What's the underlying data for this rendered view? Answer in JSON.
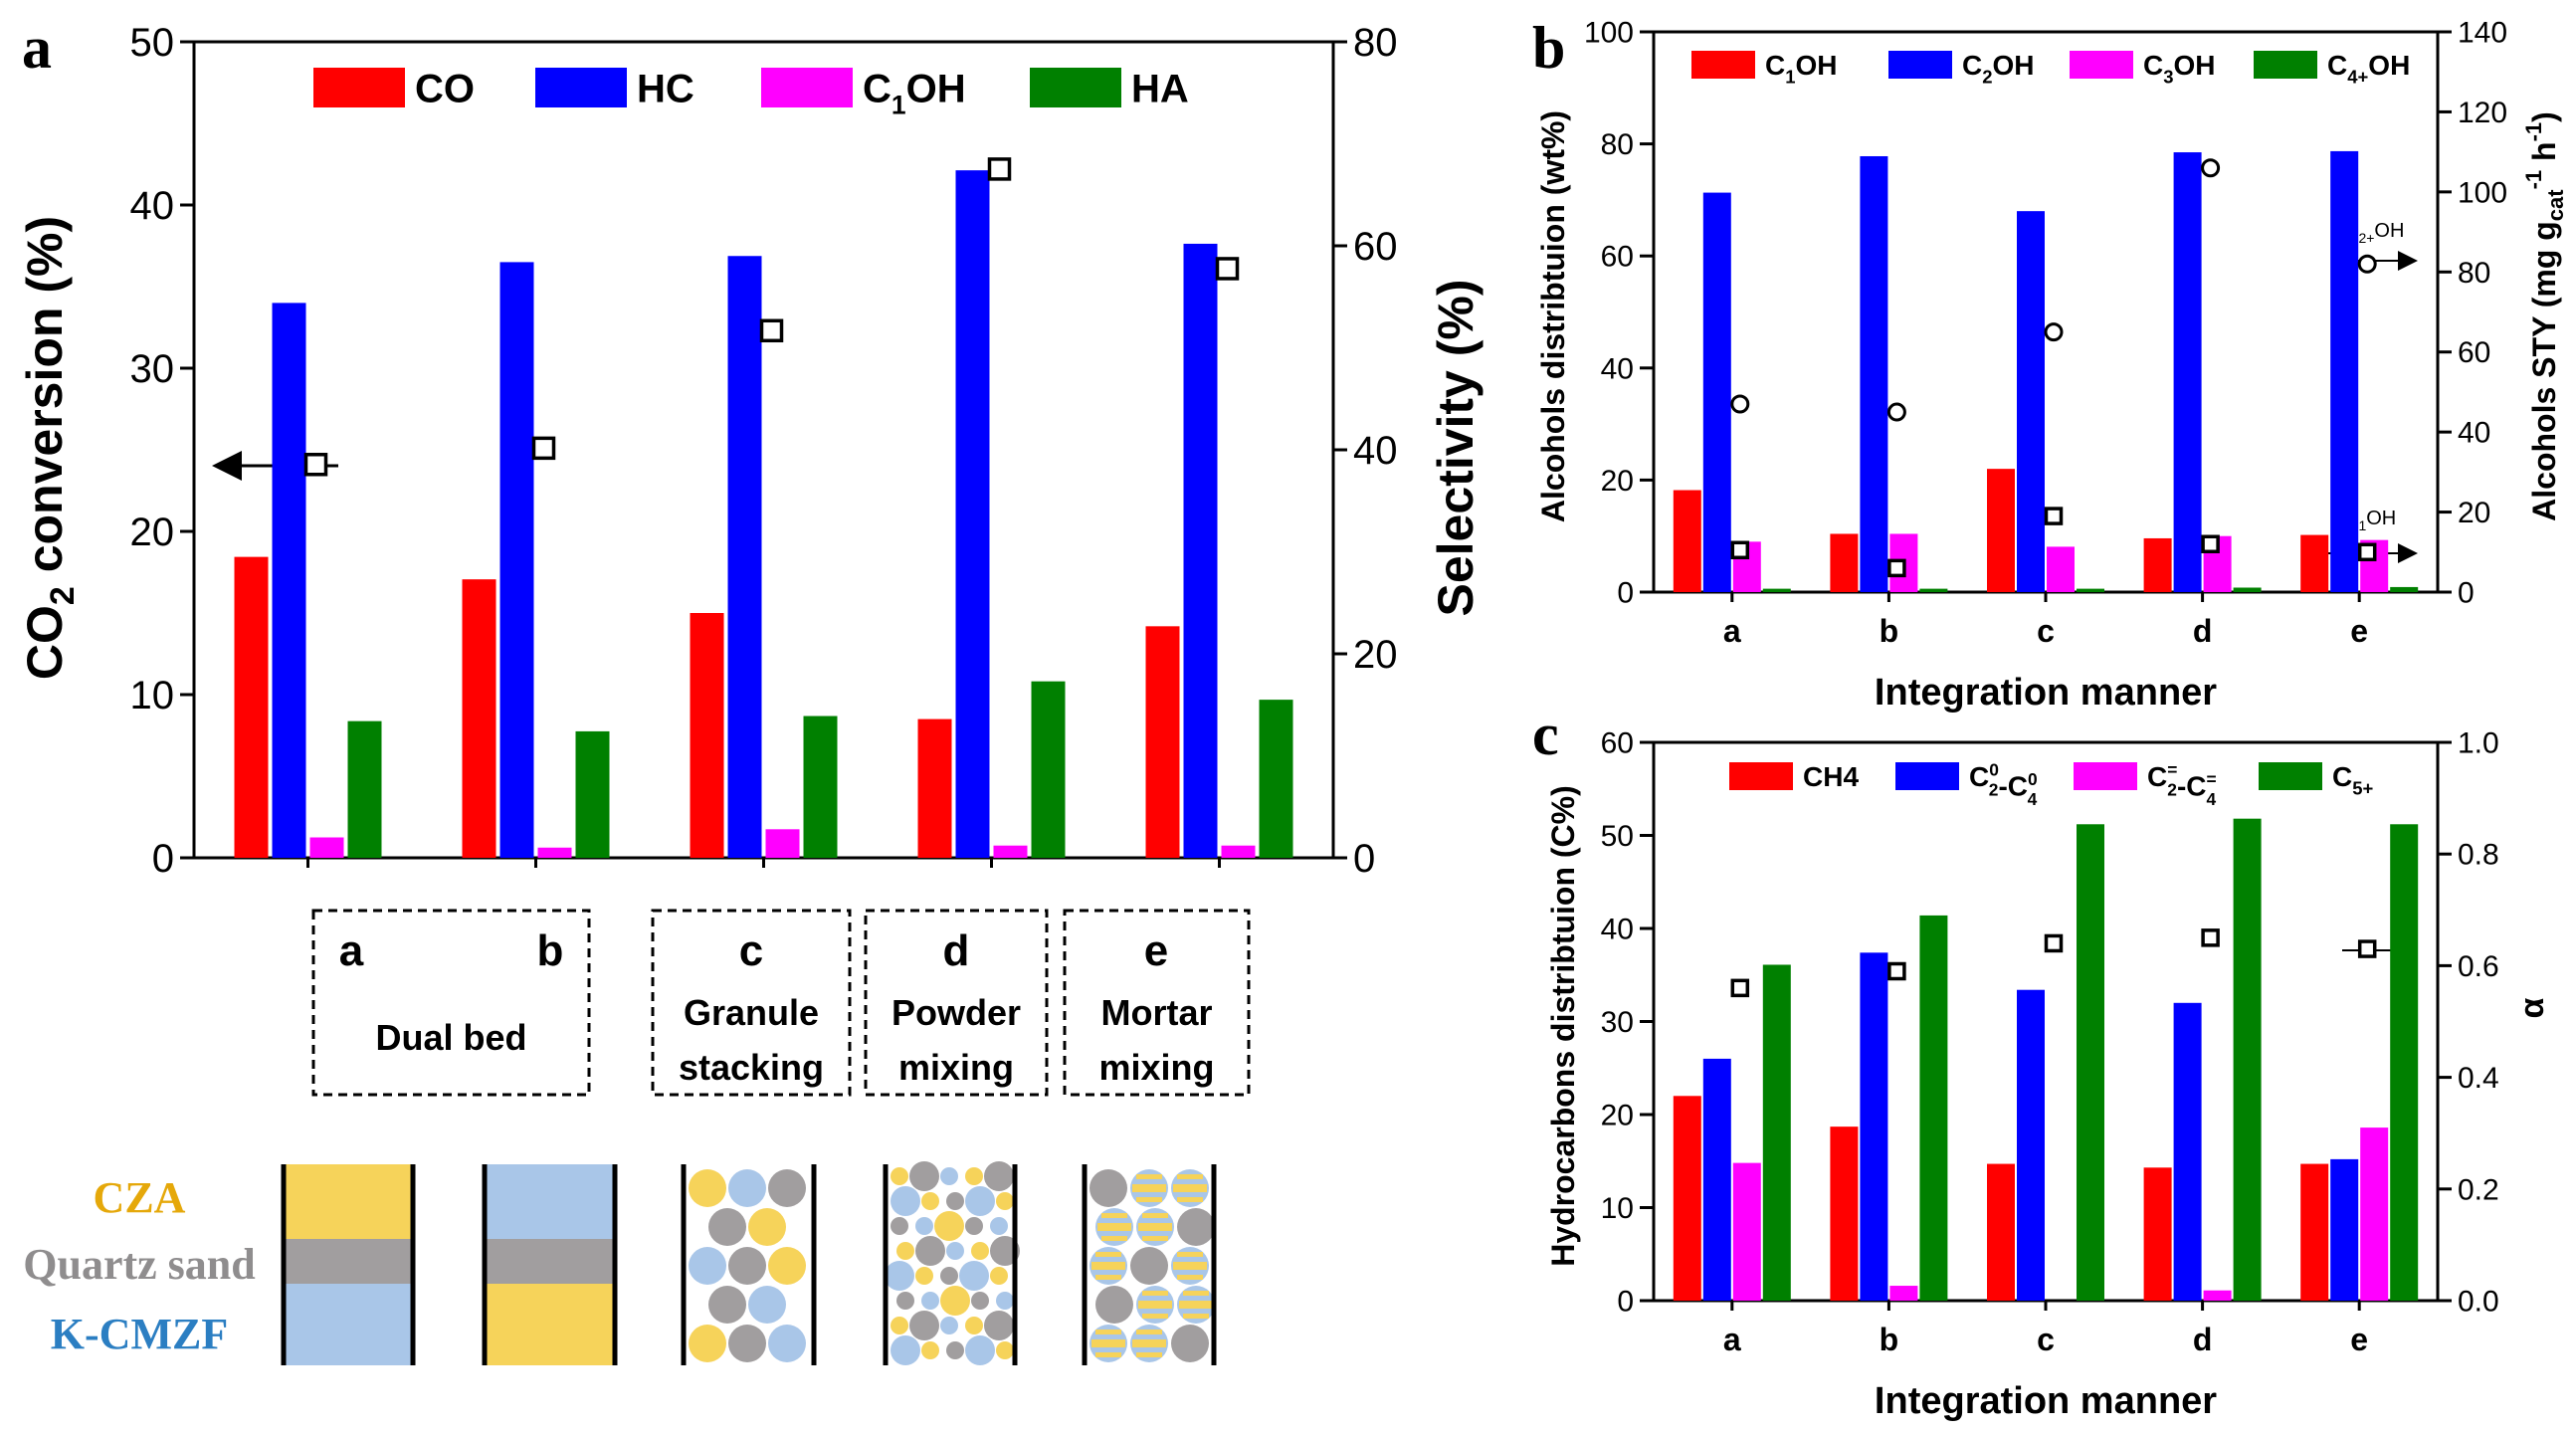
{
  "panels": {
    "a": {
      "letter": "a",
      "left_axis_title": "CO2 conversion (%)",
      "right_axis_title": "Selectivity (%)"
    },
    "b": {
      "letter": "b",
      "left_axis_title": "Alcohols distribtuion (wt%)",
      "right_axis_title": "Alcohols STY (mg gcat-1 h-1)",
      "xlabel": "Integration manner",
      "annotation_c2": "C2+OH",
      "annotation_c1": "C1OH"
    },
    "c": {
      "letter": "c",
      "left_axis_title": "Hydrocarbons distribtuion (C%)",
      "right_axis_title": "α",
      "xlabel": "Integration manner"
    }
  },
  "integration_boxes": [
    {
      "letters": [
        "a",
        "b"
      ],
      "text": [
        "Dual bed"
      ]
    },
    {
      "letters": [
        "c"
      ],
      "text": [
        "Granule",
        "stacking"
      ]
    },
    {
      "letters": [
        "d"
      ],
      "text": [
        "Powder",
        "mixing"
      ]
    },
    {
      "letters": [
        "e"
      ],
      "text": [
        "Mortar",
        "mixing"
      ]
    }
  ],
  "bed_legend": {
    "cza": {
      "label": "CZA",
      "color": "#f6d35a"
    },
    "quartz": {
      "label": "Quartz sand",
      "color": "#a19e9f"
    },
    "kcmzf": {
      "label": "K-CMZF",
      "color": "#a9c6e8"
    }
  },
  "chart_data": [
    {
      "id": "a",
      "type": "bar",
      "categories": [
        "a",
        "b",
        "c",
        "d",
        "e"
      ],
      "series": [
        {
          "name": "CO",
          "color": "#ff0000",
          "axis": "right",
          "values": [
            29.5,
            27.3,
            24.0,
            13.6,
            22.7
          ]
        },
        {
          "name": "HC",
          "color": "#0000ff",
          "axis": "right",
          "values": [
            54.4,
            58.4,
            59.0,
            67.4,
            60.2
          ]
        },
        {
          "name": "C1OH",
          "color": "#ff00ff",
          "axis": "right",
          "values": [
            2.0,
            1.0,
            2.8,
            1.2,
            1.2
          ]
        },
        {
          "name": "HA",
          "color": "#008000",
          "axis": "right",
          "values": [
            13.4,
            12.4,
            13.9,
            17.3,
            15.5
          ]
        }
      ],
      "overlay": {
        "type": "scatter",
        "marker": "square",
        "axis": "left",
        "values": [
          24.1,
          25.1,
          32.3,
          42.2,
          36.1
        ]
      },
      "ylabel": "CO2 conversion (%)",
      "y2label": "Selectivity (%)",
      "ylim": [
        0,
        50
      ],
      "y2lim": [
        0,
        80
      ],
      "yticks": [
        "0",
        "10",
        "20",
        "30",
        "40",
        "50"
      ],
      "y2ticks": [
        "0",
        "20",
        "40",
        "60",
        "80"
      ],
      "legend": "top"
    },
    {
      "id": "b",
      "type": "bar",
      "categories": [
        "a",
        "b",
        "c",
        "d",
        "e"
      ],
      "xlabel": "Integration manner",
      "series": [
        {
          "name": "C1OH",
          "color": "#ff0000",
          "axis": "left",
          "values": [
            18.2,
            10.4,
            22.0,
            9.6,
            10.2
          ]
        },
        {
          "name": "C2OH",
          "color": "#0000ff",
          "axis": "left",
          "values": [
            71.3,
            77.8,
            68.0,
            78.5,
            78.7
          ]
        },
        {
          "name": "C3OH",
          "color": "#ff00ff",
          "axis": "left",
          "values": [
            9.0,
            10.4,
            8.1,
            10.0,
            9.3
          ]
        },
        {
          "name": "C4+OH",
          "color": "#008000",
          "axis": "left",
          "values": [
            0.6,
            0.6,
            0.6,
            0.8,
            0.9
          ]
        }
      ],
      "overlays": [
        {
          "name": "C2+OH",
          "type": "scatter",
          "marker": "circle",
          "axis": "right",
          "values": [
            47,
            45,
            65,
            106,
            82
          ]
        },
        {
          "name": "C1OH",
          "type": "scatter",
          "marker": "square",
          "axis": "right",
          "values": [
            10.5,
            6,
            19,
            12,
            10
          ]
        }
      ],
      "ylabel": "Alcohols distribtuion (wt%)",
      "y2label": "Alcohols STY (mg gcat-1 h-1)",
      "ylim": [
        0,
        100
      ],
      "y2lim": [
        0,
        140
      ],
      "yticks": [
        "0",
        "20",
        "40",
        "60",
        "80",
        "100"
      ],
      "y2ticks": [
        "0",
        "20",
        "40",
        "60",
        "80",
        "100",
        "120",
        "140"
      ],
      "legend": "top"
    },
    {
      "id": "c",
      "type": "bar",
      "categories": [
        "a",
        "b",
        "c",
        "d",
        "e"
      ],
      "xlabel": "Integration manner",
      "series": [
        {
          "name": "CH4",
          "color": "#ff0000",
          "axis": "left",
          "values": [
            22.0,
            18.7,
            14.7,
            14.3,
            14.7
          ]
        },
        {
          "name": "C2⁰-C4⁰",
          "color": "#0000ff",
          "axis": "left",
          "values": [
            26.0,
            37.4,
            33.4,
            32.0,
            15.2
          ]
        },
        {
          "name": "C2⁼-C4⁼",
          "color": "#ff00ff",
          "axis": "left",
          "values": [
            14.8,
            1.6,
            0,
            1.1,
            18.6
          ]
        },
        {
          "name": "C5+",
          "color": "#008000",
          "axis": "left",
          "values": [
            36.1,
            41.4,
            51.2,
            51.8,
            51.2
          ]
        }
      ],
      "overlay": {
        "type": "scatter",
        "marker": "square",
        "axis": "right",
        "values": [
          0.56,
          0.59,
          0.64,
          0.65,
          0.63
        ]
      },
      "ylabel": "Hydrocarbons distribtuion (C%)",
      "y2label": "α",
      "ylim": [
        0,
        60
      ],
      "y2lim": [
        0,
        1.0
      ],
      "yticks": [
        "0",
        "10",
        "20",
        "30",
        "40",
        "50",
        "60"
      ],
      "y2ticks": [
        "0.0",
        "0.2",
        "0.4",
        "0.6",
        "0.8",
        "1.0"
      ],
      "legend": "top"
    }
  ]
}
